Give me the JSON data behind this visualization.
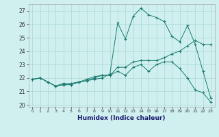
{
  "xlabel": "Humidex (Indice chaleur)",
  "bg_color": "#cff0ee",
  "grid_color": "#aad8d4",
  "line_color": "#1a7a6e",
  "x_ticks": [
    0,
    1,
    2,
    3,
    4,
    5,
    6,
    7,
    8,
    9,
    10,
    11,
    12,
    13,
    14,
    15,
    16,
    17,
    18,
    19,
    20,
    21,
    22,
    23
  ],
  "y_ticks": [
    20,
    21,
    22,
    23,
    24,
    25,
    26,
    27
  ],
  "xlim": [
    -0.5,
    23.5
  ],
  "ylim": [
    19.85,
    27.5
  ],
  "series": [
    {
      "x": [
        0,
        1,
        2,
        3,
        4,
        5,
        6,
        7,
        8,
        9,
        10,
        11,
        12,
        13,
        14,
        15,
        16,
        17,
        18,
        19,
        20,
        21,
        22,
        23
      ],
      "y": [
        21.9,
        22.0,
        21.7,
        21.4,
        21.6,
        21.6,
        21.7,
        21.8,
        22.0,
        22.2,
        22.2,
        22.8,
        22.8,
        23.2,
        23.3,
        23.3,
        23.3,
        23.5,
        23.8,
        24.0,
        24.4,
        24.8,
        24.5,
        24.5
      ]
    },
    {
      "x": [
        0,
        1,
        2,
        3,
        4,
        5,
        6,
        7,
        8,
        9,
        10,
        11,
        12,
        13,
        14,
        15,
        16,
        17,
        18,
        19,
        20,
        21,
        22,
        23
      ],
      "y": [
        21.9,
        22.0,
        21.7,
        21.4,
        21.5,
        21.5,
        21.7,
        21.9,
        22.1,
        22.2,
        22.2,
        22.5,
        22.2,
        22.8,
        23.0,
        22.5,
        23.0,
        23.2,
        23.2,
        22.7,
        22.0,
        21.1,
        20.9,
        20.2
      ]
    },
    {
      "x": [
        0,
        1,
        2,
        3,
        4,
        5,
        6,
        7,
        8,
        9,
        10,
        11,
        12,
        13,
        14,
        15,
        16,
        17,
        18,
        19,
        20,
        21,
        22,
        23
      ],
      "y": [
        21.9,
        22.0,
        21.7,
        21.4,
        21.5,
        21.5,
        21.7,
        21.8,
        21.9,
        22.0,
        22.3,
        26.1,
        24.9,
        26.6,
        27.2,
        26.7,
        26.5,
        26.2,
        25.1,
        24.7,
        25.9,
        24.5,
        22.5,
        20.5
      ]
    }
  ]
}
